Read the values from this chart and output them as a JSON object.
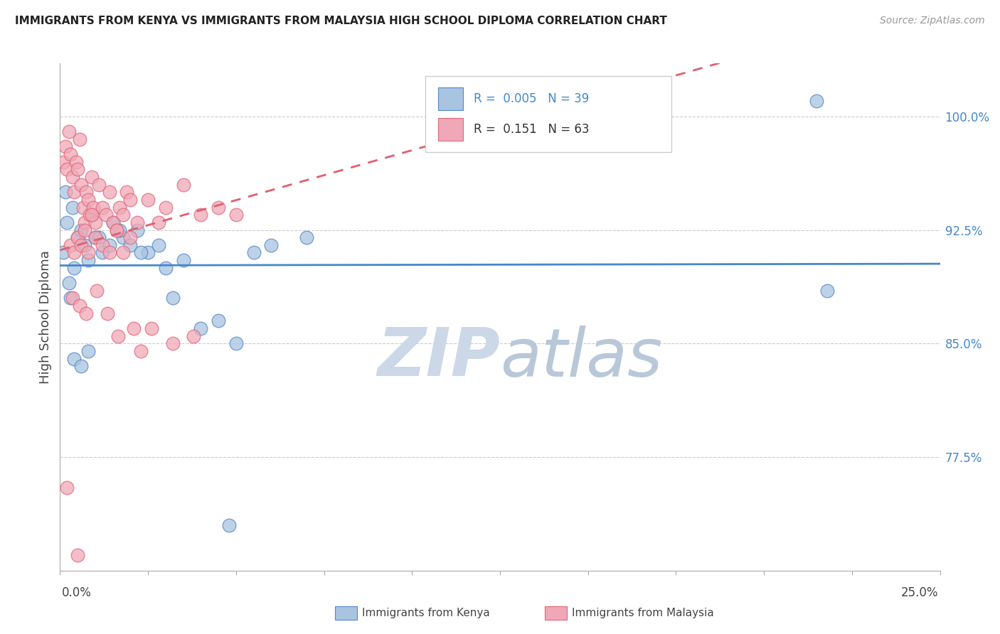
{
  "title": "IMMIGRANTS FROM KENYA VS IMMIGRANTS FROM MALAYSIA HIGH SCHOOL DIPLOMA CORRELATION CHART",
  "source_text": "Source: ZipAtlas.com",
  "ylabel": "High School Diploma",
  "xlim": [
    0.0,
    25.0
  ],
  "ylim": [
    70.0,
    103.5
  ],
  "yticks": [
    77.5,
    85.0,
    92.5,
    100.0
  ],
  "ytick_labels": [
    "77.5%",
    "85.0%",
    "92.5%",
    "100.0%"
  ],
  "legend_r_kenya": "0.005",
  "legend_n_kenya": "39",
  "legend_r_malaysia": "0.151",
  "legend_n_malaysia": "63",
  "kenya_color": "#a8c4e0",
  "malaysia_color": "#f0a8b8",
  "kenya_edge_color": "#5588cc",
  "malaysia_edge_color": "#e06878",
  "kenya_line_color": "#4488cc",
  "malaysia_line_color": "#dd6070",
  "tick_color": "#4488cc",
  "background_color": "#ffffff",
  "watermark_color": "#ccd8e8",
  "kenya_x": [
    0.3,
    0.5,
    0.4,
    0.2,
    0.15,
    0.1,
    0.25,
    0.35,
    0.6,
    0.7,
    0.8,
    0.9,
    1.0,
    1.2,
    1.5,
    1.8,
    2.0,
    2.2,
    2.5,
    2.8,
    3.0,
    3.5,
    4.0,
    4.5,
    5.0,
    5.5,
    6.0,
    7.0,
    0.4,
    0.6,
    0.8,
    1.1,
    1.4,
    1.7,
    2.3,
    3.2,
    4.8,
    21.5,
    21.8
  ],
  "kenya_y": [
    88.0,
    92.0,
    90.0,
    93.0,
    95.0,
    91.0,
    89.0,
    94.0,
    92.5,
    91.5,
    90.5,
    93.5,
    92.0,
    91.0,
    93.0,
    92.0,
    91.5,
    92.5,
    91.0,
    91.5,
    90.0,
    90.5,
    86.0,
    86.5,
    85.0,
    91.0,
    91.5,
    92.0,
    84.0,
    83.5,
    84.5,
    92.0,
    91.5,
    92.5,
    91.0,
    88.0,
    73.0,
    101.0,
    88.5
  ],
  "malaysia_x": [
    0.1,
    0.15,
    0.2,
    0.25,
    0.3,
    0.35,
    0.4,
    0.45,
    0.5,
    0.55,
    0.6,
    0.65,
    0.7,
    0.75,
    0.8,
    0.85,
    0.9,
    0.95,
    1.0,
    1.1,
    1.2,
    1.3,
    1.4,
    1.5,
    1.6,
    1.7,
    1.8,
    1.9,
    2.0,
    2.2,
    2.5,
    2.8,
    3.0,
    3.5,
    4.0,
    4.5,
    5.0,
    0.3,
    0.4,
    0.5,
    0.6,
    0.7,
    0.8,
    0.9,
    1.0,
    1.2,
    1.4,
    1.6,
    1.8,
    2.0,
    2.3,
    2.6,
    3.2,
    0.35,
    0.55,
    0.75,
    1.05,
    1.35,
    1.65,
    2.1,
    3.8,
    0.2,
    0.5
  ],
  "malaysia_y": [
    97.0,
    98.0,
    96.5,
    99.0,
    97.5,
    96.0,
    95.0,
    97.0,
    96.5,
    98.5,
    95.5,
    94.0,
    93.0,
    95.0,
    94.5,
    93.5,
    96.0,
    94.0,
    93.0,
    95.5,
    94.0,
    93.5,
    95.0,
    93.0,
    92.5,
    94.0,
    93.5,
    95.0,
    94.5,
    93.0,
    94.5,
    93.0,
    94.0,
    95.5,
    93.5,
    94.0,
    93.5,
    91.5,
    91.0,
    92.0,
    91.5,
    92.5,
    91.0,
    93.5,
    92.0,
    91.5,
    91.0,
    92.5,
    91.0,
    92.0,
    84.5,
    86.0,
    85.0,
    88.0,
    87.5,
    87.0,
    88.5,
    87.0,
    85.5,
    86.0,
    85.5,
    75.5,
    71.0
  ]
}
